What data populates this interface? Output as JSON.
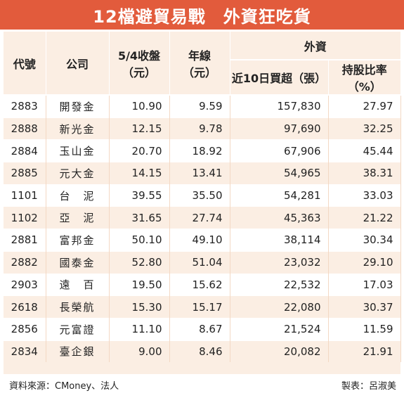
{
  "title": "12檔避貿易戰　外資狂吃貨",
  "headers": {
    "code": "代號",
    "company": "公司",
    "close_line1": "5/4收盤",
    "close_line2": "（元）",
    "year_line1": "年線",
    "year_line2": "（元）",
    "foreign": "外資",
    "net_buy": "近10日買超（張）",
    "holding": "持股比率（%）"
  },
  "rows": [
    {
      "code": "2883",
      "company": "開發金",
      "close": "10.90",
      "yearline": "9.59",
      "netbuy": "157,830",
      "holding": "27.97"
    },
    {
      "code": "2888",
      "company": "新光金",
      "close": "12.15",
      "yearline": "9.78",
      "netbuy": "97,690",
      "holding": "32.25"
    },
    {
      "code": "2884",
      "company": "玉山金",
      "close": "20.70",
      "yearline": "18.92",
      "netbuy": "67,906",
      "holding": "45.44"
    },
    {
      "code": "2885",
      "company": "元大金",
      "close": "14.15",
      "yearline": "13.41",
      "netbuy": "54,965",
      "holding": "38.31"
    },
    {
      "code": "1101",
      "company": "台　泥",
      "close": "39.55",
      "yearline": "35.50",
      "netbuy": "54,281",
      "holding": "33.03"
    },
    {
      "code": "1102",
      "company": "亞　泥",
      "close": "31.65",
      "yearline": "27.74",
      "netbuy": "45,363",
      "holding": "21.22"
    },
    {
      "code": "2881",
      "company": "富邦金",
      "close": "50.10",
      "yearline": "49.10",
      "netbuy": "38,114",
      "holding": "30.34"
    },
    {
      "code": "2882",
      "company": "國泰金",
      "close": "52.80",
      "yearline": "51.04",
      "netbuy": "23,032",
      "holding": "29.10"
    },
    {
      "code": "2903",
      "company": "遠　百",
      "close": "19.50",
      "yearline": "15.62",
      "netbuy": "22,532",
      "holding": "17.03"
    },
    {
      "code": "2618",
      "company": "長榮航",
      "close": "15.30",
      "yearline": "15.17",
      "netbuy": "22,080",
      "holding": "30.37"
    },
    {
      "code": "2856",
      "company": "元富證",
      "close": "11.10",
      "yearline": "8.67",
      "netbuy": "21,524",
      "holding": "11.59"
    },
    {
      "code": "2834",
      "company": "臺企銀",
      "close": "9.00",
      "yearline": "8.46",
      "netbuy": "20,082",
      "holding": "21.91"
    }
  ],
  "footer": {
    "source": "資料來源：CMoney、法人",
    "credit": "製表：呂淑美"
  },
  "colors": {
    "title_bg": "#e25b3c",
    "band": "#fbeee3"
  }
}
